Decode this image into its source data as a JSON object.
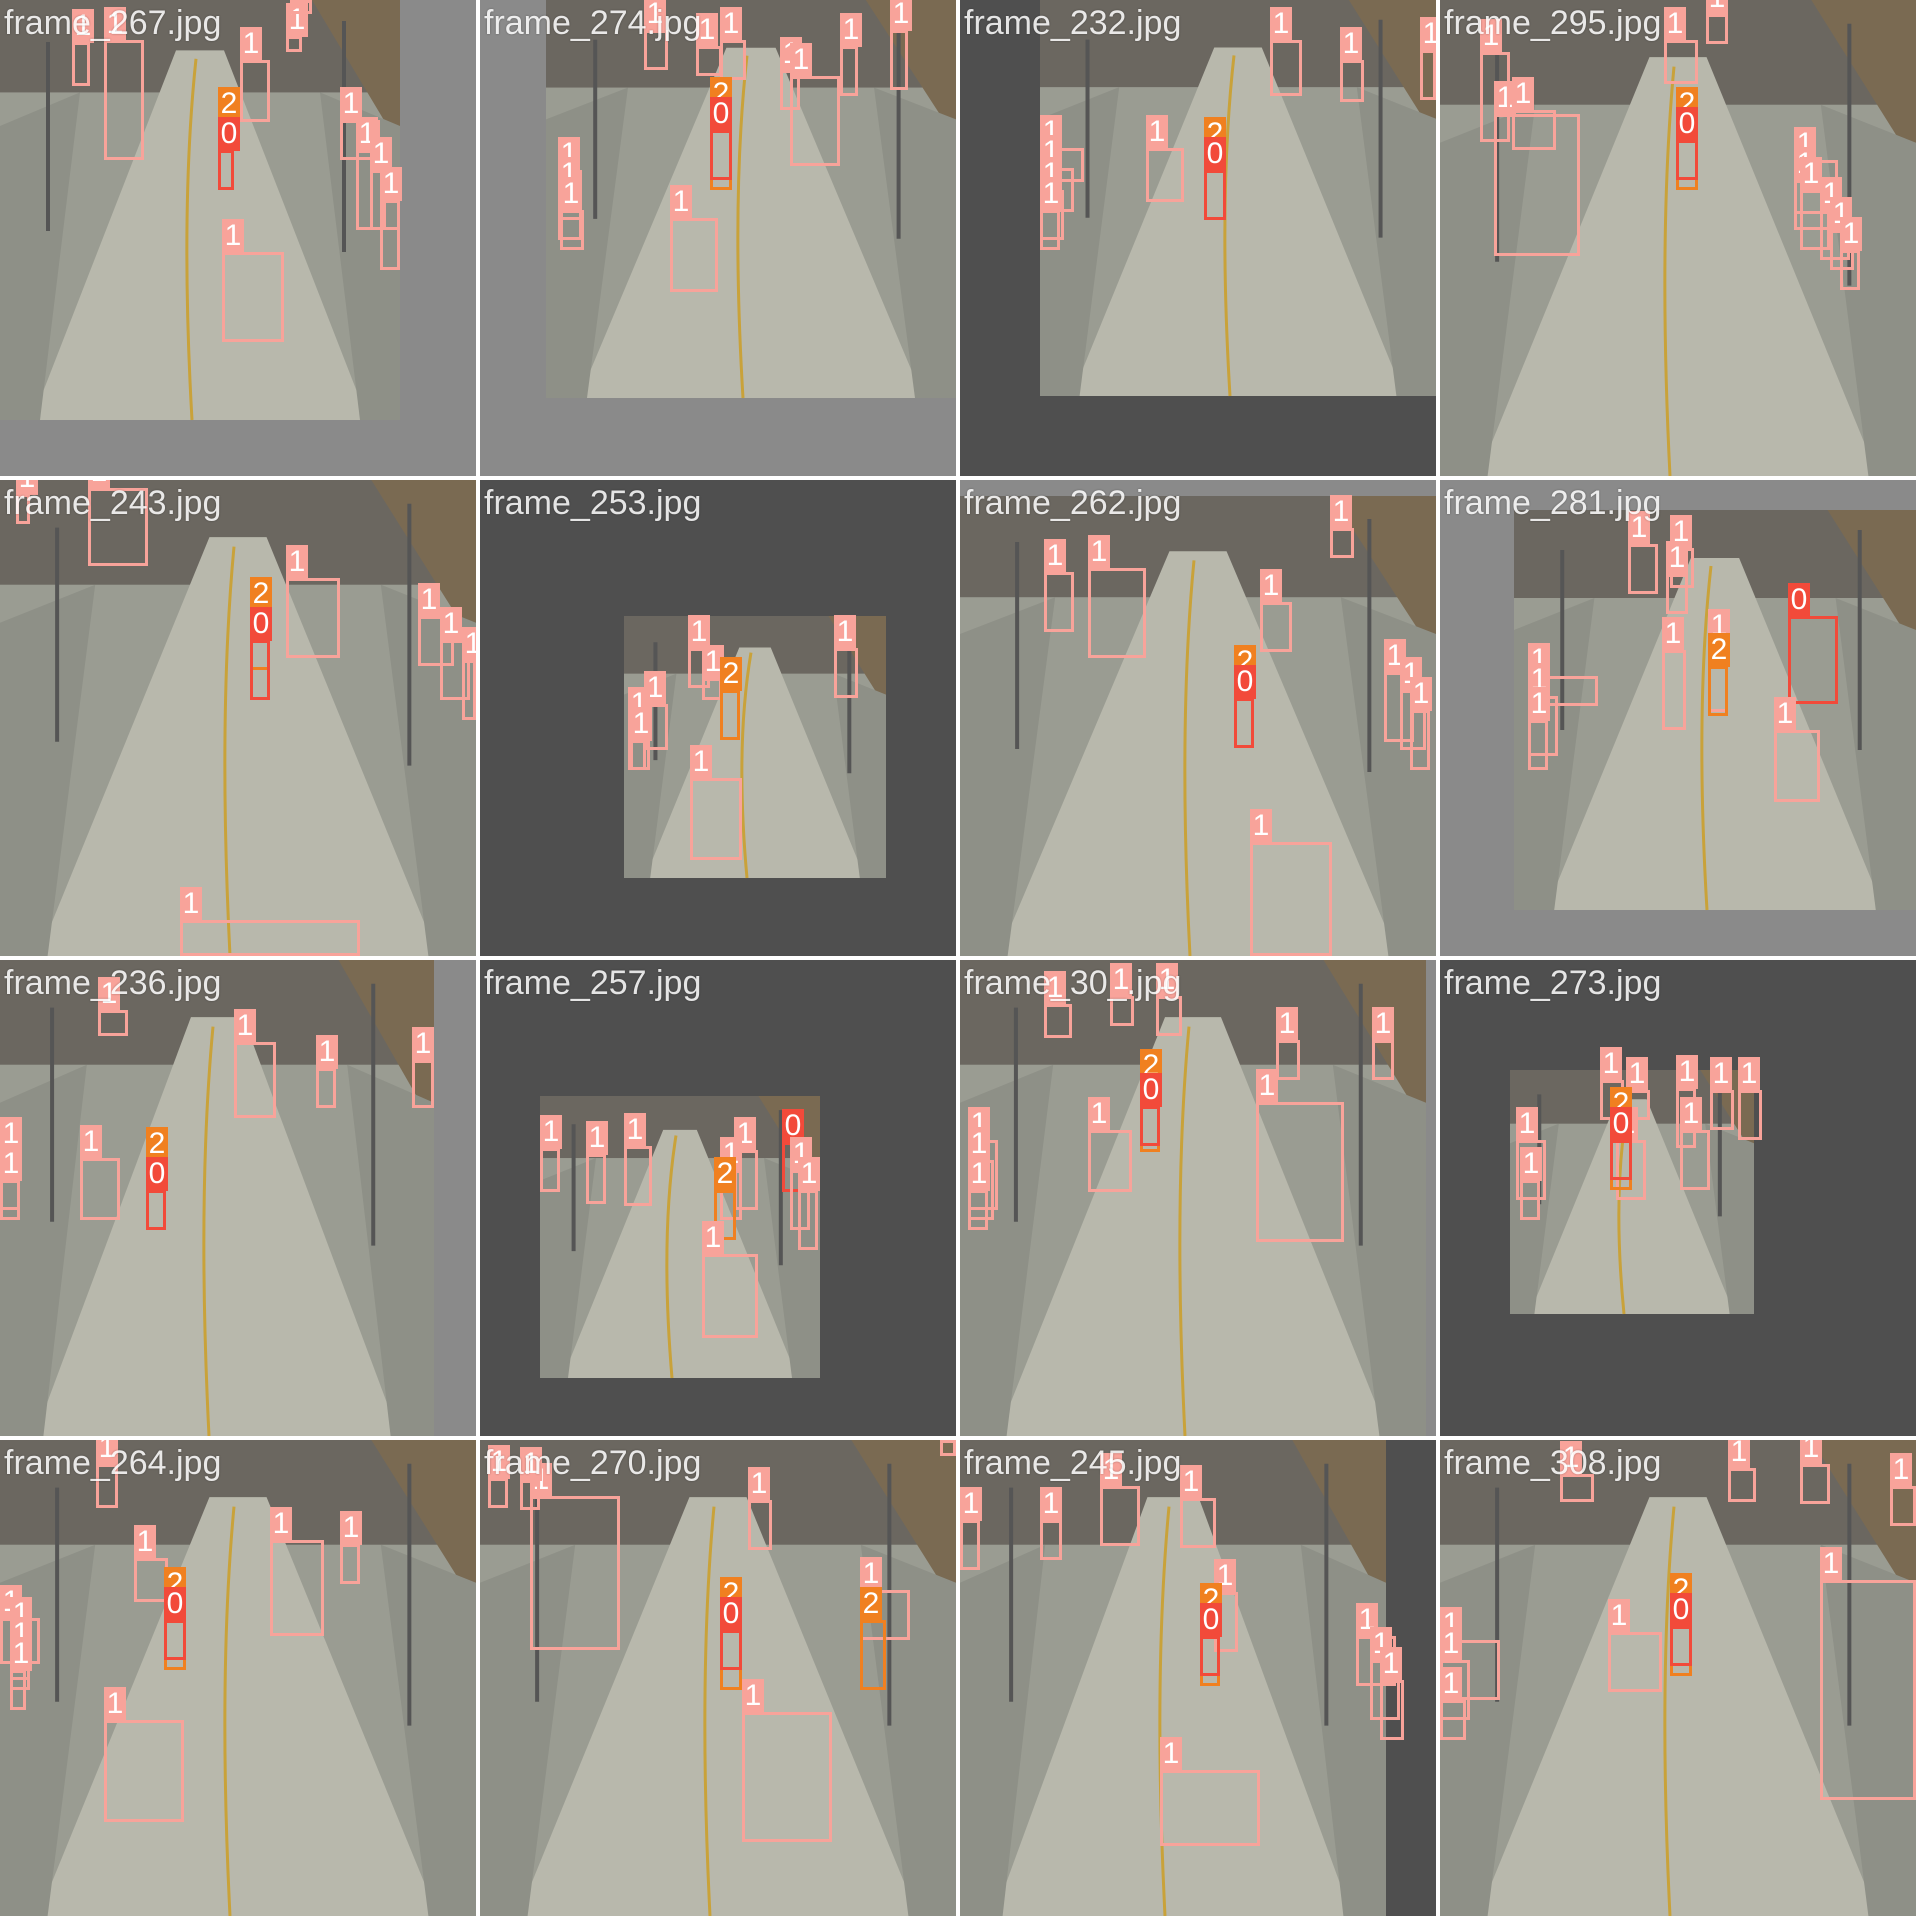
{
  "colors": {
    "class_0": "#f24a3a",
    "class_1": "#f8a39a",
    "class_2": "#f08020",
    "pad_light": "#8a8a8a",
    "pad_dark": "#4f4f4f"
  },
  "tiles": [
    {
      "filename": "frame_267.jpg",
      "labels": [
        "1",
        "1",
        "1",
        "1",
        "1",
        "1",
        "1",
        "1",
        "2",
        "0",
        "1",
        "1"
      ]
    },
    {
      "filename": "frame_274.jpg",
      "labels": [
        "1",
        "1",
        "1",
        "1",
        "1",
        "1",
        "1",
        "2",
        "0",
        "1",
        "1",
        "1",
        "1"
      ]
    },
    {
      "filename": "frame_232.jpg",
      "labels": [
        "1",
        "1",
        "1",
        "1",
        "1",
        "2",
        "0",
        "1",
        "1",
        "1"
      ]
    },
    {
      "filename": "frame_295.jpg",
      "labels": [
        "1",
        "1",
        "1",
        "1",
        "1",
        "2",
        "0",
        "1",
        "1",
        "1",
        "1",
        "1",
        "1"
      ]
    },
    {
      "filename": "frame_243.jpg",
      "labels": [
        "1",
        "1",
        "1",
        "2",
        "0",
        "1",
        "1",
        "1",
        "1"
      ]
    },
    {
      "filename": "frame_253.jpg",
      "labels": [
        "1",
        "1",
        "1",
        "1",
        "1",
        "2",
        "1",
        "1"
      ]
    },
    {
      "filename": "frame_262.jpg",
      "labels": [
        "1",
        "1",
        "1",
        "1",
        "2",
        "0",
        "1",
        "1",
        "1",
        "1"
      ]
    },
    {
      "filename": "frame_281.jpg",
      "labels": [
        "1",
        "1",
        "1",
        "1",
        "1",
        "2",
        "0",
        "1",
        "1",
        "1",
        "1"
      ]
    },
    {
      "filename": "frame_236.jpg",
      "labels": [
        "1",
        "1",
        "1",
        "1",
        "1",
        "1",
        "2",
        "0",
        "1"
      ]
    },
    {
      "filename": "frame_257.jpg",
      "labels": [
        "1",
        "1",
        "1",
        "1",
        "1",
        "2",
        "0",
        "1",
        "1",
        "1"
      ]
    },
    {
      "filename": "frame_30_.jpg",
      "labels": [
        "1",
        "1",
        "1",
        "1",
        "1",
        "1",
        "2",
        "0",
        "1",
        "1",
        "1",
        "1"
      ]
    },
    {
      "filename": "frame_273.jpg",
      "labels": [
        "1",
        "1",
        "1",
        "1",
        "1",
        "1",
        "2",
        "0",
        "1",
        "1",
        "1"
      ]
    },
    {
      "filename": "frame_264.jpg",
      "labels": [
        "1",
        "1",
        "1",
        "1",
        "1",
        "2",
        "0",
        "1",
        "1",
        "1",
        "1"
      ]
    },
    {
      "filename": "frame_270.jpg",
      "labels": [
        "1",
        "1",
        "1",
        "1",
        "2",
        "0",
        "1",
        "1",
        "1",
        "2"
      ]
    },
    {
      "filename": "frame_245.jpg",
      "labels": [
        "1",
        "1",
        "1",
        "1",
        "1",
        "2",
        "0",
        "1",
        "1",
        "1",
        "1"
      ]
    },
    {
      "filename": "frame_308.jpg",
      "labels": [
        "1",
        "1",
        "1",
        "1",
        "1",
        "2",
        "0",
        "1",
        "1",
        "1",
        "1"
      ]
    }
  ]
}
